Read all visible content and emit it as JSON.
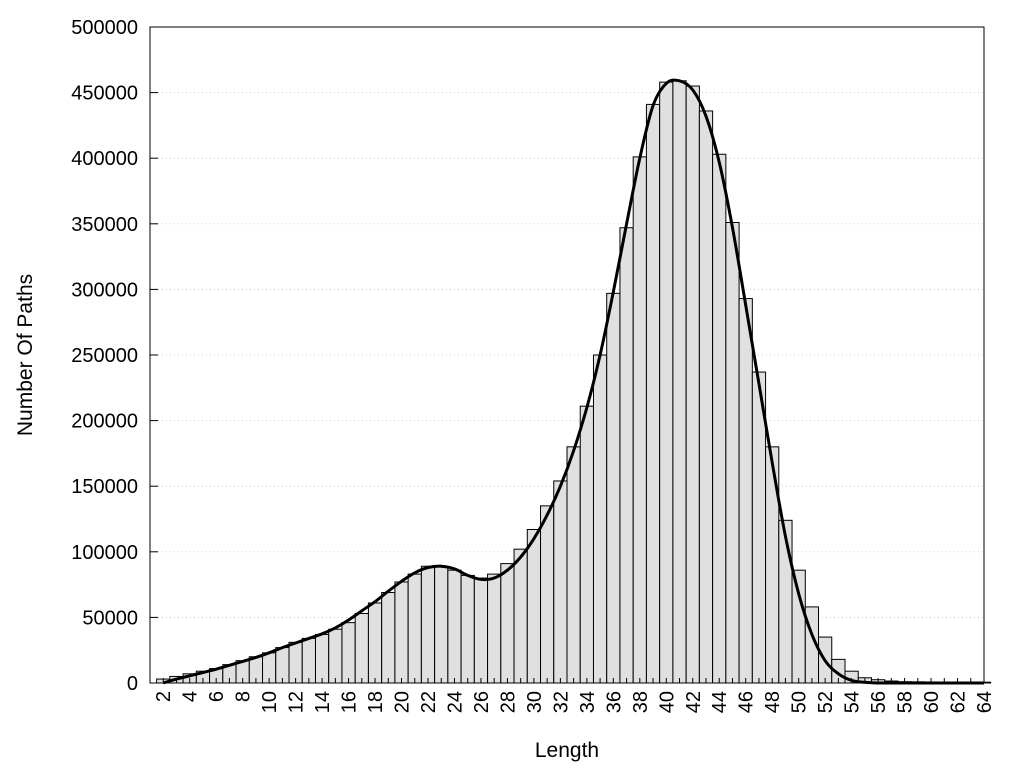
{
  "chart_data": {
    "type": "bar",
    "title": "",
    "xlabel": "Length",
    "ylabel": "Number Of Paths",
    "xlim": [
      1,
      64
    ],
    "ylim": [
      0,
      500000
    ],
    "yticks": [
      "0",
      "50000",
      "100000",
      "150000",
      "200000",
      "250000",
      "300000",
      "350000",
      "400000",
      "450000",
      "500000"
    ],
    "xticks": [
      "2",
      "4",
      "6",
      "8",
      "10",
      "12",
      "14",
      "16",
      "18",
      "20",
      "22",
      "24",
      "26",
      "28",
      "30",
      "32",
      "34",
      "36",
      "38",
      "40",
      "42",
      "44",
      "46",
      "48",
      "50",
      "52",
      "54",
      "56",
      "58",
      "60",
      "62",
      "64"
    ],
    "grid": "horizontal-dotted",
    "colors": {
      "bar_fill": "#e0e0e0",
      "bar_stroke": "#000000",
      "curve": "#000000"
    },
    "categories": [
      2,
      3,
      4,
      5,
      6,
      7,
      8,
      9,
      10,
      11,
      12,
      13,
      14,
      15,
      16,
      17,
      18,
      19,
      20,
      21,
      22,
      23,
      24,
      25,
      26,
      27,
      28,
      29,
      30,
      31,
      32,
      33,
      34,
      35,
      36,
      37,
      38,
      39,
      40,
      41,
      42,
      43,
      44,
      45,
      46,
      47,
      48,
      49,
      50,
      51,
      52,
      53,
      54,
      55,
      56,
      57,
      58,
      59,
      60,
      61,
      62,
      63,
      64
    ],
    "series": [
      {
        "type": "bar",
        "values": [
          3000,
          5000,
          7000,
          9000,
          11000,
          14000,
          17000,
          20000,
          23000,
          27000,
          31000,
          34000,
          37000,
          41000,
          46000,
          53000,
          61000,
          69000,
          77000,
          83000,
          89000,
          89000,
          86000,
          82000,
          80000,
          83000,
          91000,
          102000,
          117000,
          135000,
          154000,
          180000,
          211000,
          250000,
          297000,
          347000,
          401000,
          441000,
          458000,
          459000,
          455000,
          436000,
          403000,
          351000,
          293000,
          237000,
          180000,
          124000,
          86000,
          58000,
          35000,
          18000,
          9000,
          4000,
          2500,
          1500,
          1000,
          900,
          800,
          700,
          600,
          600,
          600
        ]
      },
      {
        "type": "line",
        "smooth": true,
        "values": [
          0,
          3000,
          5500,
          8000,
          10500,
          13500,
          16500,
          19500,
          23000,
          27000,
          30500,
          34000,
          37500,
          42000,
          48000,
          55000,
          62000,
          70000,
          77500,
          84000,
          88000,
          89000,
          87000,
          82000,
          79000,
          80000,
          86000,
          96000,
          110000,
          128000,
          150000,
          177000,
          210000,
          250000,
          298000,
          350000,
          400000,
          440000,
          457000,
          459000,
          452000,
          432000,
          397000,
          347000,
          288000,
          228000,
          168000,
          112000,
          68000,
          37000,
          17000,
          7000,
          2000,
          500,
          0,
          0,
          0,
          0,
          0,
          0,
          0,
          0,
          0
        ]
      }
    ]
  }
}
